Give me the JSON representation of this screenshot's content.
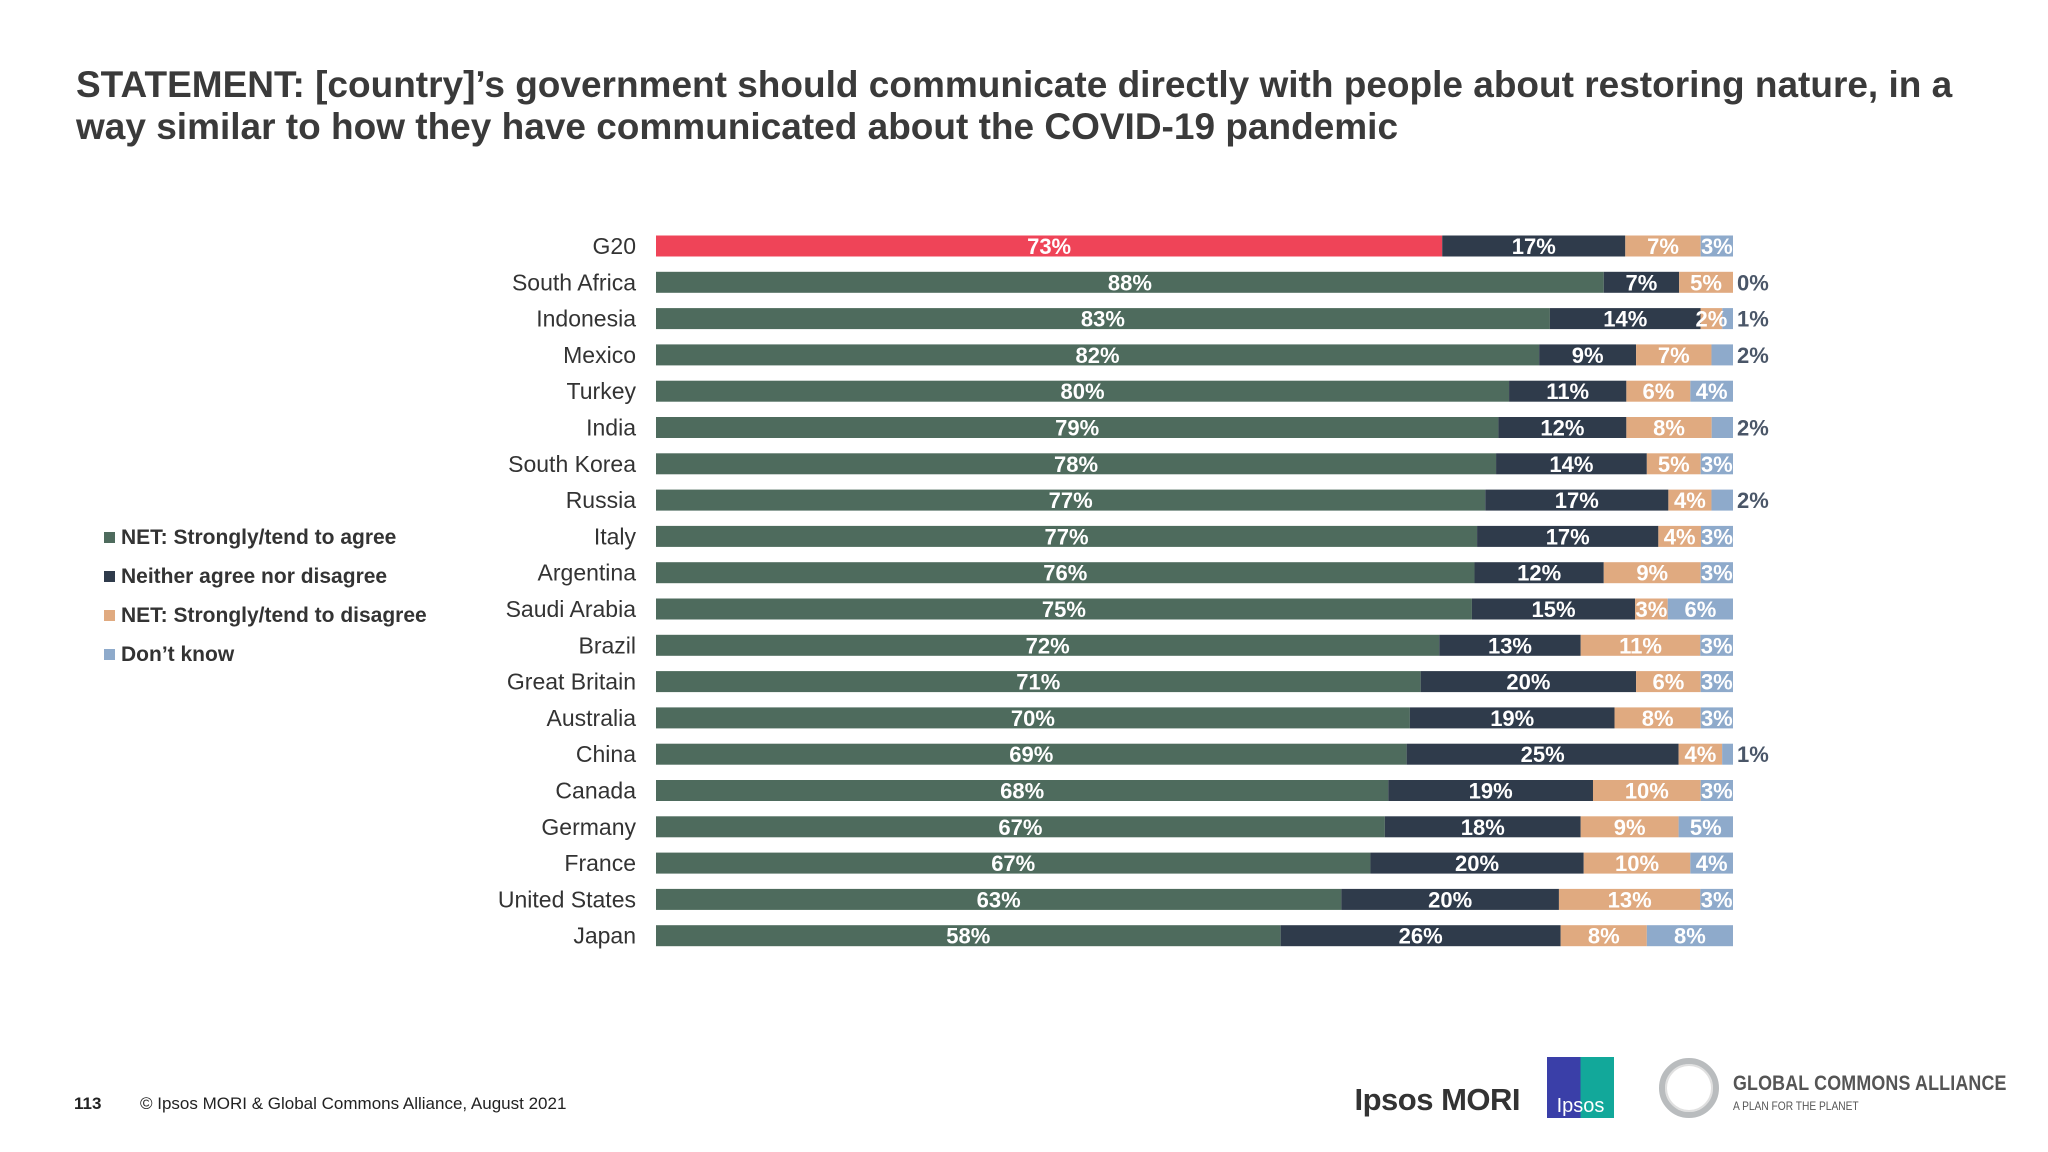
{
  "title": "STATEMENT: [country]’s government should communicate directly with people about restoring nature, in a way similar to how they have communicated about the COVID-19 pandemic",
  "chart_data": {
    "type": "bar",
    "orientation": "horizontal",
    "stacked": true,
    "legend_position": "left",
    "categories": [
      "G20",
      "South Africa",
      "Indonesia",
      "Mexico",
      "Turkey",
      "India",
      "South Korea",
      "Russia",
      "Italy",
      "Argentina",
      "Saudi Arabia",
      "Brazil",
      "Great Britain",
      "Australia",
      "China",
      "Canada",
      "Germany",
      "France",
      "United States",
      "Japan"
    ],
    "series": [
      {
        "name": "NET: Strongly/tend to agree",
        "color": "#4e6b5d",
        "highlight_color": "#ef4458",
        "values": [
          73,
          88,
          83,
          82,
          80,
          79,
          78,
          77,
          77,
          76,
          75,
          72,
          71,
          70,
          69,
          68,
          67,
          67,
          63,
          58
        ]
      },
      {
        "name": "Neither agree nor disagree",
        "color": "#2f3b4b",
        "values": [
          17,
          7,
          14,
          9,
          11,
          12,
          14,
          17,
          17,
          12,
          15,
          13,
          20,
          19,
          25,
          19,
          18,
          20,
          20,
          26
        ]
      },
      {
        "name": "NET: Strongly/tend to disagree",
        "color": "#e0aa80",
        "values": [
          7,
          5,
          2,
          7,
          6,
          8,
          5,
          4,
          4,
          9,
          3,
          11,
          6,
          8,
          4,
          10,
          9,
          10,
          13,
          8
        ]
      },
      {
        "name": "Don’t know",
        "color": "#8eaacb",
        "values": [
          3,
          0,
          1,
          2,
          4,
          2,
          3,
          2,
          3,
          3,
          6,
          3,
          3,
          3,
          1,
          3,
          5,
          4,
          3,
          8
        ]
      }
    ]
  },
  "footer": {
    "page_number": "113",
    "copyright": "© Ipsos MORI & Global Commons Alliance, August 2021"
  },
  "logos": {
    "ipsos_mori": "Ipsos MORI",
    "ipsos": "Ipsos",
    "gca_name": "GLOBAL COMMONS ALLIANCE",
    "gca_tagline": "A PLAN FOR THE PLANET"
  }
}
